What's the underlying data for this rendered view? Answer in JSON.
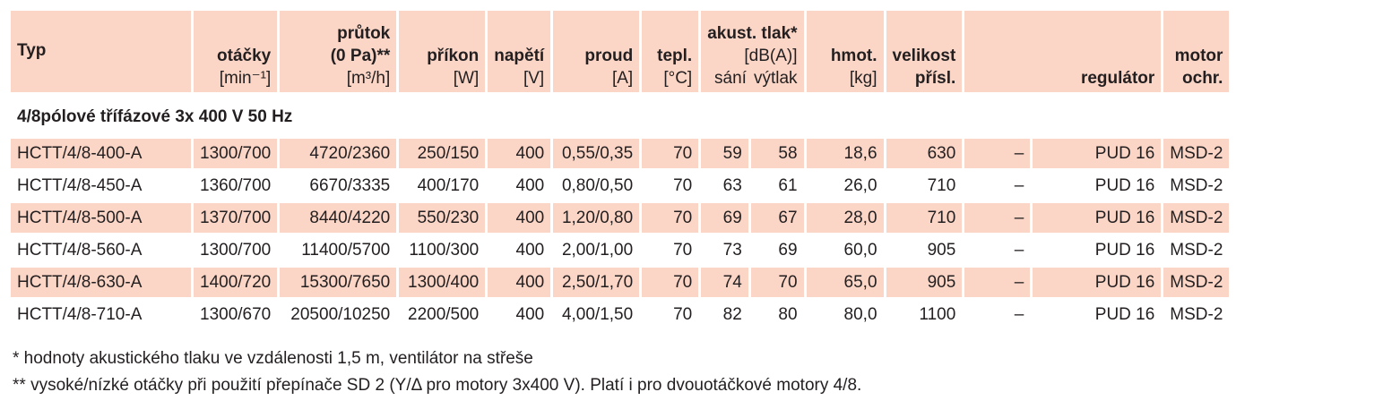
{
  "header": {
    "columns": [
      {
        "title": [
          "Typ"
        ],
        "unit": []
      },
      {
        "title": [
          "otáčky"
        ],
        "unit": [
          "[min⁻¹]"
        ]
      },
      {
        "title": [
          "průtok",
          "(0 Pa)**"
        ],
        "unit": [
          "[m³/h]"
        ]
      },
      {
        "title": [
          "příkon"
        ],
        "unit": [
          "[W]"
        ]
      },
      {
        "title": [
          "napětí"
        ],
        "unit": [
          "[V]"
        ]
      },
      {
        "title": [
          "proud"
        ],
        "unit": [
          "[A]"
        ]
      },
      {
        "title": [
          "tepl."
        ],
        "unit": [
          "[°C]"
        ]
      },
      {
        "title": [
          "akust. tlak*"
        ],
        "unit": [
          "[dB(A)]"
        ],
        "sub": [
          "sání",
          "výtlak"
        ]
      },
      {
        "title": [
          "hmot."
        ],
        "unit": [
          "[kg]"
        ]
      },
      {
        "title": [
          "velikost",
          "přísl."
        ],
        "unit": []
      },
      {
        "title": [
          "regulátor"
        ],
        "unit": []
      },
      {
        "title": [
          "motor",
          "ochr."
        ],
        "unit": []
      }
    ]
  },
  "table": {
    "section": "4/8pólové třífázové 3x 400 V 50 Hz",
    "rows": [
      [
        "HCTT/4/8-400-A",
        "1300/700",
        "4720/2360",
        "250/150",
        "400",
        "0,55/0,35",
        "70",
        "59",
        "58",
        "18,6",
        "630",
        "–",
        "PUD 16",
        "MSD-2"
      ],
      [
        "HCTT/4/8-450-A",
        "1360/700",
        "6670/3335",
        "400/170",
        "400",
        "0,80/0,50",
        "70",
        "63",
        "61",
        "26,0",
        "710",
        "–",
        "PUD 16",
        "MSD-2"
      ],
      [
        "HCTT/4/8-500-A",
        "1370/700",
        "8440/4220",
        "550/230",
        "400",
        "1,20/0,80",
        "70",
        "69",
        "67",
        "28,0",
        "710",
        "–",
        "PUD 16",
        "MSD-2"
      ],
      [
        "HCTT/4/8-560-A",
        "1300/700",
        "11400/5700",
        "1100/300",
        "400",
        "2,00/1,00",
        "70",
        "73",
        "69",
        "60,0",
        "905",
        "–",
        "PUD 16",
        "MSD-2"
      ],
      [
        "HCTT/4/8-630-A",
        "1400/720",
        "15300/7650",
        "1300/400",
        "400",
        "2,50/1,70",
        "70",
        "74",
        "70",
        "65,0",
        "905",
        "–",
        "PUD 16",
        "MSD-2"
      ],
      [
        "HCTT/4/8-710-A",
        "1300/670",
        "20500/10250",
        "2200/500",
        "400",
        "4,00/1,50",
        "70",
        "82",
        "80",
        "80,0",
        "1100",
        "–",
        "PUD 16",
        "MSD-2"
      ]
    ]
  },
  "notes": [
    "* hodnoty akustického tlaku ve vzdálenosti 1,5 m, ventilátor na střeše",
    "** vysoké/nízké otáčky při použití přepínače SD 2 (Y/Δ pro motory 3x400 V). Platí i pro dvouotáčkové motory 4/8."
  ]
}
